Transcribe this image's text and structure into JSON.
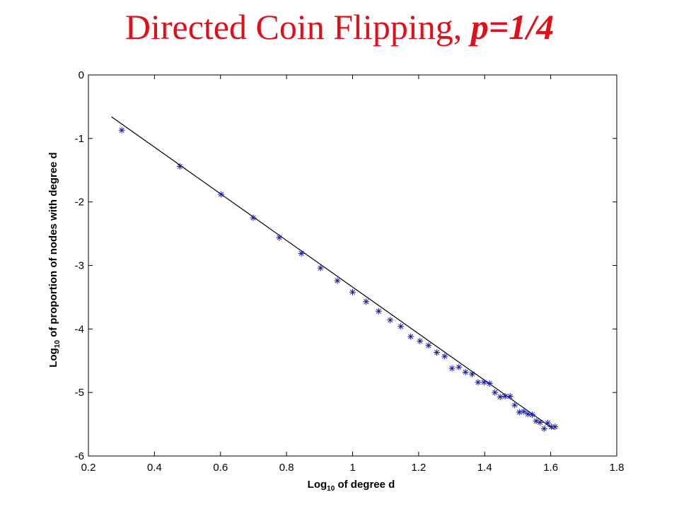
{
  "title": {
    "main": "Directed Coin Flipping, ",
    "emphasis": "p=1/4"
  },
  "chart_data": {
    "type": "scatter",
    "title": "Directed Coin Flipping, p=1/4",
    "xlabel": {
      "base": "Log",
      "sub": "10",
      "rest": " of degree d"
    },
    "ylabel": {
      "base": "Log",
      "sub": "10",
      "rest": " of proportion of nodes with degree d"
    },
    "xlim": [
      0.2,
      1.8
    ],
    "ylim": [
      -6,
      0
    ],
    "xticks": [
      0.2,
      0.4,
      0.6,
      0.8,
      1,
      1.2,
      1.4,
      1.6,
      1.8
    ],
    "xtick_labels": [
      "0.2",
      "0.4",
      "0.6",
      "0.8",
      "1",
      "1.2",
      "1.4",
      "1.6",
      "1.8"
    ],
    "yticks": [
      0,
      -1,
      -2,
      -3,
      -4,
      -5,
      -6
    ],
    "ytick_labels": [
      "0",
      "-1",
      "-2",
      "-3",
      "-4",
      "-5",
      "-6"
    ],
    "grid": false,
    "marker_color": "#1a1aa6",
    "line_color": "#000000",
    "title_color": "#e0101a",
    "points": [
      [
        0.301,
        -0.87
      ],
      [
        0.477,
        -1.44
      ],
      [
        0.602,
        -1.88
      ],
      [
        0.699,
        -2.25
      ],
      [
        0.778,
        -2.56
      ],
      [
        0.845,
        -2.81
      ],
      [
        0.903,
        -3.04
      ],
      [
        0.954,
        -3.24
      ],
      [
        1.0,
        -3.42
      ],
      [
        1.041,
        -3.57
      ],
      [
        1.079,
        -3.72
      ],
      [
        1.114,
        -3.86
      ],
      [
        1.146,
        -3.96
      ],
      [
        1.176,
        -4.12
      ],
      [
        1.204,
        -4.19
      ],
      [
        1.23,
        -4.26
      ],
      [
        1.255,
        -4.37
      ],
      [
        1.279,
        -4.43
      ],
      [
        1.301,
        -4.62
      ],
      [
        1.322,
        -4.6
      ],
      [
        1.342,
        -4.68
      ],
      [
        1.362,
        -4.71
      ],
      [
        1.38,
        -4.84
      ],
      [
        1.398,
        -4.84
      ],
      [
        1.415,
        -4.86
      ],
      [
        1.431,
        -5.0
      ],
      [
        1.447,
        -5.07
      ],
      [
        1.462,
        -5.06
      ],
      [
        1.477,
        -5.06
      ],
      [
        1.491,
        -5.2
      ],
      [
        1.505,
        -5.31
      ],
      [
        1.519,
        -5.3
      ],
      [
        1.531,
        -5.34
      ],
      [
        1.544,
        -5.35
      ],
      [
        1.556,
        -5.45
      ],
      [
        1.568,
        -5.47
      ],
      [
        1.58,
        -5.57
      ],
      [
        1.591,
        -5.48
      ],
      [
        1.602,
        -5.54
      ],
      [
        1.613,
        -5.54
      ]
    ],
    "fit_line": {
      "x": [
        0.27,
        1.61
      ],
      "y": [
        -0.66,
        -5.58
      ]
    }
  }
}
